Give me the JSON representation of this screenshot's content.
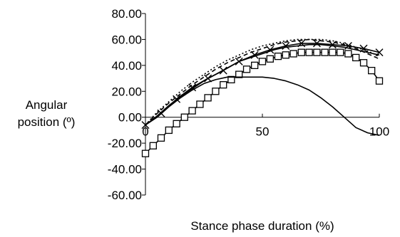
{
  "chart_data": {
    "type": "line",
    "title": "",
    "xlabel": "Stance phase duration (%)",
    "ylabel_lines": [
      "Angular",
      "position (º)"
    ],
    "xlim": [
      0,
      100
    ],
    "ylim": [
      -60,
      80
    ],
    "xticks": [
      0,
      50,
      100
    ],
    "xtick_labels": [
      "0",
      "50",
      "100"
    ],
    "yticks": [
      80,
      60,
      40,
      20,
      0,
      -20,
      -40,
      -60
    ],
    "ytick_labels": [
      "80.00",
      "60.00",
      "40.00",
      "20.00",
      "0.00",
      "-20.00",
      "-40.00",
      "-60.00"
    ],
    "grid": false,
    "legend": "none",
    "series": [
      {
        "style": "solid-x-markers",
        "color": "#000000",
        "marker": "x",
        "x": [
          0,
          6.7,
          13.3,
          20,
          26.7,
          33.3,
          40,
          46.7,
          53.3,
          60,
          66.7,
          73.3,
          80,
          86.7,
          93.3,
          100
        ],
        "y": [
          -6,
          3,
          14,
          23,
          30,
          36,
          43,
          48,
          52,
          55,
          57,
          57,
          56,
          55,
          53,
          50
        ]
      },
      {
        "style": "solid-square-markers",
        "color": "#000000",
        "marker": "square",
        "x": [
          0,
          3.3,
          6.7,
          10,
          13.3,
          16.7,
          20,
          23.3,
          26.7,
          30,
          33.3,
          36.7,
          40,
          43.3,
          46.7,
          50,
          53.3,
          56.7,
          60,
          63.3,
          66.7,
          70,
          73.3,
          76.7,
          80,
          83.3,
          86.7,
          90,
          93.3,
          96.7,
          100
        ],
        "y": [
          -28,
          -22,
          -16,
          -10,
          -5,
          0,
          5,
          10,
          15,
          20,
          25,
          29,
          33,
          37,
          40,
          43,
          45,
          47,
          48,
          49,
          50,
          50,
          50,
          50,
          50,
          50,
          49,
          46,
          42,
          36,
          28
        ]
      },
      {
        "style": "solid",
        "color": "#000000",
        "marker": "none",
        "x": [
          0,
          5,
          10,
          15,
          20,
          25,
          30,
          35,
          40,
          45,
          50,
          55,
          60,
          65,
          70,
          75,
          80,
          85,
          90,
          95,
          100
        ],
        "y": [
          -6,
          0,
          8,
          15,
          21,
          26,
          29,
          31,
          31,
          31,
          31,
          30,
          28,
          25,
          21,
          15,
          8,
          0,
          -8,
          -12,
          -14
        ]
      },
      {
        "style": "solid",
        "color": "#000000",
        "marker": "none",
        "x": [
          0,
          5,
          10,
          15,
          20,
          25,
          30,
          35,
          40,
          45,
          50,
          55,
          60,
          65,
          70,
          75,
          80,
          85,
          90,
          95,
          100
        ],
        "y": [
          -6,
          1,
          9,
          16,
          22,
          28,
          33,
          38,
          43,
          46,
          49,
          52,
          54,
          55,
          56,
          56,
          55,
          54,
          52,
          50,
          48
        ]
      },
      {
        "style": "dashed",
        "color": "#000000",
        "marker": "none",
        "x": [
          0,
          5,
          10,
          15,
          20,
          25,
          30,
          35,
          40,
          45,
          50,
          55,
          60,
          65,
          70,
          75,
          80,
          85,
          90,
          95,
          100
        ],
        "y": [
          -6,
          3,
          11,
          18,
          25,
          31,
          37,
          42,
          46,
          50,
          53,
          56,
          58,
          59,
          60,
          59,
          58,
          56,
          53,
          49,
          45
        ]
      },
      {
        "style": "dotted",
        "color": "#000000",
        "marker": "none",
        "x": [
          0,
          5,
          10,
          15,
          20,
          25,
          30,
          35,
          40,
          45,
          50,
          55,
          60,
          65,
          70,
          75,
          80,
          85,
          90,
          95,
          100
        ],
        "y": [
          -6,
          4,
          12,
          20,
          27,
          33,
          39,
          44,
          48,
          52,
          55,
          57,
          59,
          60,
          60,
          60,
          59,
          57,
          54,
          51,
          47
        ]
      }
    ]
  }
}
